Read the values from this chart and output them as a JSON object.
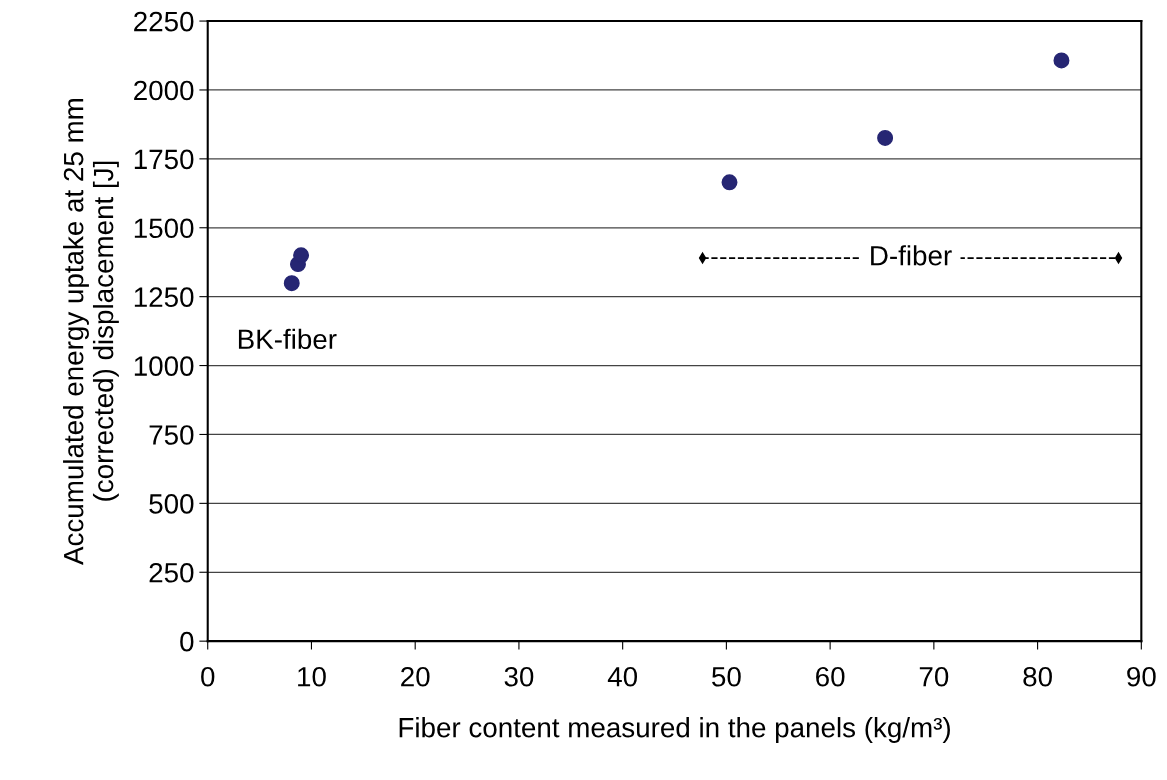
{
  "chart_data": {
    "type": "scatter",
    "xlabel": "Fiber content measured in the panels (kg/m³)",
    "ylabel": "Accumulated energy uptake at 25 mm\n(corrected) displacement [J]",
    "x": [
      8.1,
      8.7,
      9.0,
      50.3,
      65.3,
      82.3
    ],
    "series": [
      {
        "color": "#262673",
        "values": [
          1299,
          1368,
          1400,
          1665,
          1826,
          2107
        ]
      },
      {
        "type": "line",
        "name": "D-fiber",
        "color": "#000000",
        "x": [
          47.7,
          87.8
        ],
        "values": [
          1390,
          1390
        ],
        "line_style": "dashed",
        "marker": "diamond"
      }
    ],
    "marker": "circle",
    "grid": "y",
    "xlim": [
      0,
      90
    ],
    "xticks": [
      0,
      10,
      20,
      30,
      40,
      50,
      60,
      70,
      80,
      90
    ],
    "ylim": [
      0,
      2250
    ],
    "yticks": [
      0,
      250,
      500,
      750,
      1000,
      1250,
      1500,
      1750,
      2000,
      2250
    ],
    "annotations": [
      "BK-fiber"
    ]
  }
}
